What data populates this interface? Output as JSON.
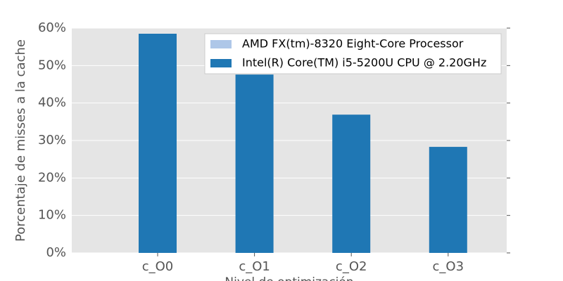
{
  "chart_data": {
    "type": "bar",
    "x_label": "Nivel de optimización",
    "y_label": "Porcentaje de misses a la cache",
    "categories": [
      "c_O0",
      "c_O1",
      "c_O2",
      "c_O3"
    ],
    "series": [
      {
        "name": "AMD FX(tm)-8320 Eight-Core Processor",
        "color": "#aec7e8",
        "values": [
          0,
          0,
          0,
          0
        ]
      },
      {
        "name": "Intel(R) Core(TM) i5-5200U CPU @ 2.20GHz",
        "color": "#1f77b4",
        "values": [
          58.5,
          47.6,
          36.9,
          28.3
        ]
      }
    ],
    "ylim": [
      0,
      60
    ],
    "yticks": [
      {
        "value": 0,
        "label": "0%"
      },
      {
        "value": 10,
        "label": "10%"
      },
      {
        "value": 20,
        "label": "20%"
      },
      {
        "value": 30,
        "label": "30%"
      },
      {
        "value": 40,
        "label": "40%"
      },
      {
        "value": 50,
        "label": "50%"
      },
      {
        "value": 60,
        "label": "60%"
      }
    ],
    "grid": true,
    "legend_position": "upper right"
  }
}
